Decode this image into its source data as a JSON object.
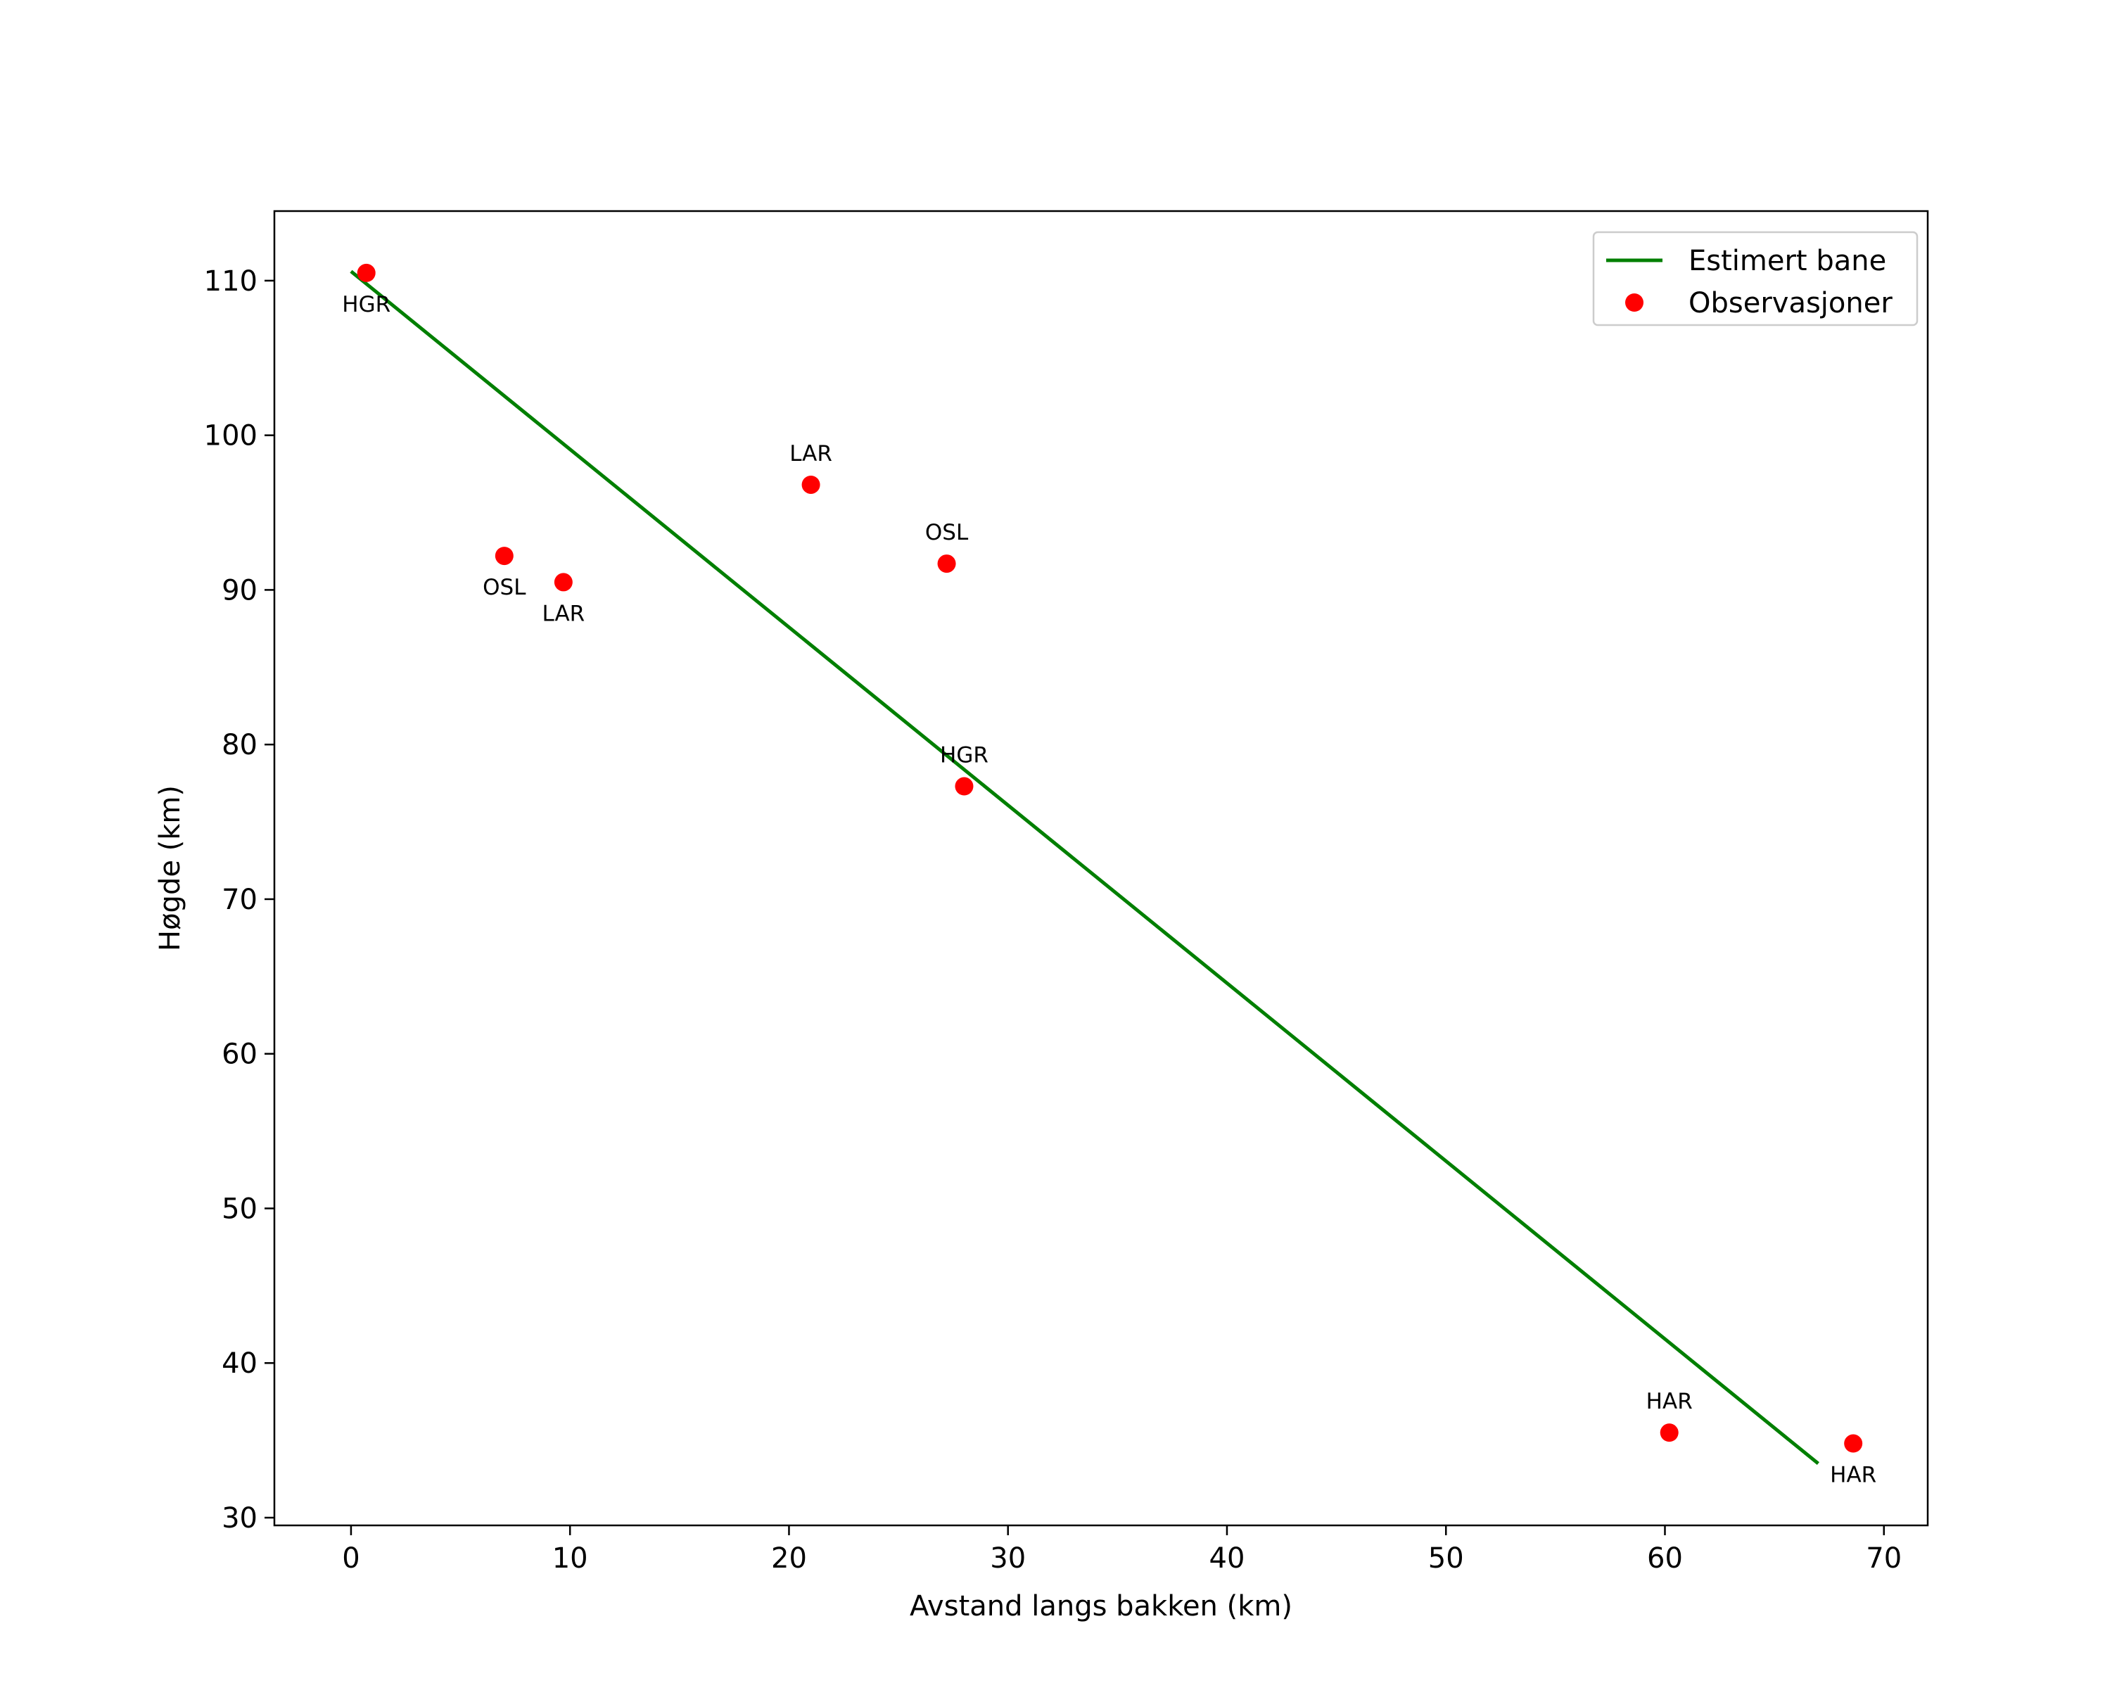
{
  "chart_data": {
    "type": "scatter",
    "title": "",
    "xlabel": "Avstand langs bakken (km)",
    "ylabel": "Høgde (km)",
    "xlim": [
      -3.5,
      72
    ],
    "ylim": [
      29.5,
      114.5
    ],
    "x_ticks": [
      0,
      10,
      20,
      30,
      40,
      50,
      60,
      70
    ],
    "y_ticks": [
      30,
      40,
      50,
      60,
      70,
      80,
      90,
      100,
      110
    ],
    "grid": false,
    "legend_position": "top-right",
    "colors": {
      "line": "#007f00",
      "points": "#ff0000"
    },
    "series": [
      {
        "name": "Estimert bane",
        "kind": "line",
        "x": [
          0.0,
          67.0
        ],
        "y": [
          110.6,
          33.5
        ]
      },
      {
        "name": "Observasjoner",
        "kind": "scatter",
        "points": [
          {
            "x": 0.7,
            "y": 110.5,
            "label": "HGR",
            "label_pos": "below"
          },
          {
            "x": 7.0,
            "y": 92.2,
            "label": "OSL",
            "label_pos": "below"
          },
          {
            "x": 9.7,
            "y": 90.5,
            "label": "LAR",
            "label_pos": "below"
          },
          {
            "x": 21.0,
            "y": 96.8,
            "label": "LAR",
            "label_pos": "above"
          },
          {
            "x": 27.2,
            "y": 91.7,
            "label": "OSL",
            "label_pos": "above"
          },
          {
            "x": 28.0,
            "y": 77.3,
            "label": "HGR",
            "label_pos": "above"
          },
          {
            "x": 60.2,
            "y": 35.5,
            "label": "HAR",
            "label_pos": "above"
          },
          {
            "x": 68.6,
            "y": 34.8,
            "label": "HAR",
            "label_pos": "below"
          }
        ]
      }
    ]
  }
}
